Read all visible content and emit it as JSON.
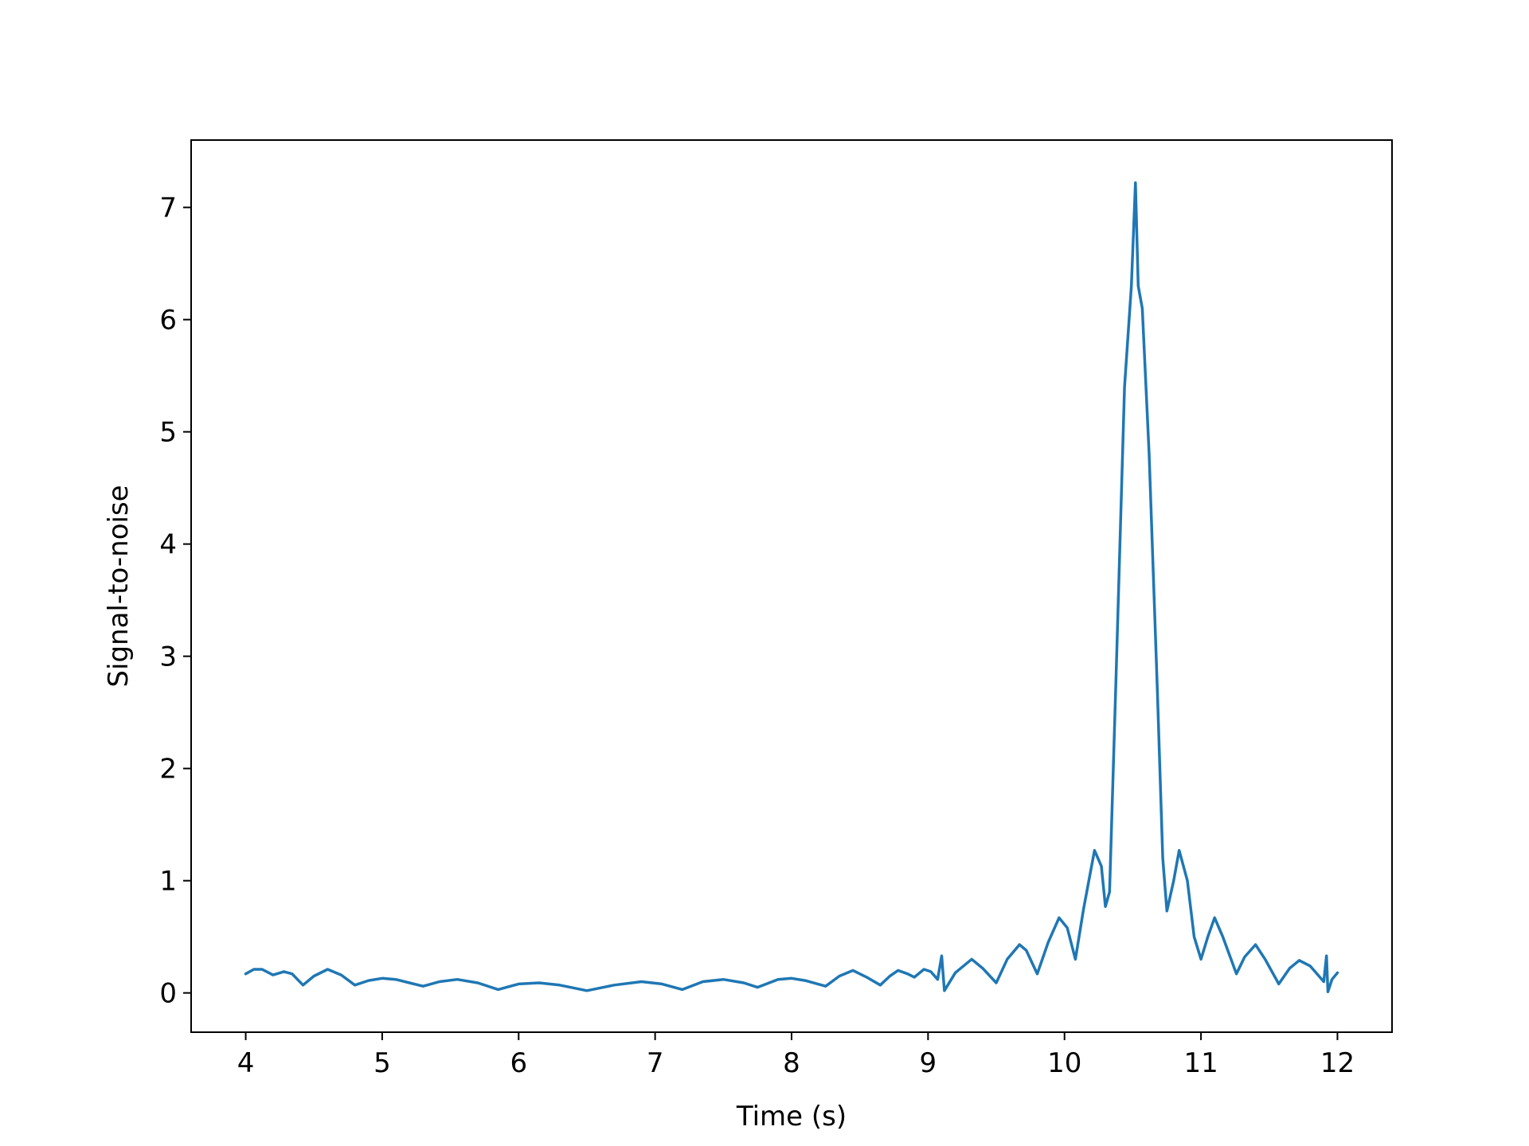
{
  "chart_data": {
    "type": "line",
    "title": "",
    "xlabel": "Time (s)",
    "ylabel": "Signal-to-noise",
    "xlim": [
      3.6,
      12.4
    ],
    "ylim": [
      -0.35,
      7.6
    ],
    "xticks": [
      4,
      5,
      6,
      7,
      8,
      9,
      10,
      11,
      12
    ],
    "yticks": [
      0,
      1,
      2,
      3,
      4,
      5,
      6,
      7
    ],
    "grid": false,
    "legend": "none",
    "series": [
      {
        "color": "#1f77b4",
        "points": [
          [
            4.0,
            0.17
          ],
          [
            4.06,
            0.21
          ],
          [
            4.12,
            0.21
          ],
          [
            4.2,
            0.16
          ],
          [
            4.28,
            0.19
          ],
          [
            4.34,
            0.17
          ],
          [
            4.42,
            0.07
          ],
          [
            4.5,
            0.15
          ],
          [
            4.6,
            0.21
          ],
          [
            4.7,
            0.16
          ],
          [
            4.8,
            0.07
          ],
          [
            4.9,
            0.11
          ],
          [
            5.0,
            0.13
          ],
          [
            5.1,
            0.12
          ],
          [
            5.2,
            0.09
          ],
          [
            5.3,
            0.06
          ],
          [
            5.42,
            0.1
          ],
          [
            5.55,
            0.12
          ],
          [
            5.7,
            0.09
          ],
          [
            5.85,
            0.03
          ],
          [
            6.0,
            0.08
          ],
          [
            6.15,
            0.09
          ],
          [
            6.3,
            0.07
          ],
          [
            6.5,
            0.02
          ],
          [
            6.7,
            0.07
          ],
          [
            6.9,
            0.1
          ],
          [
            7.05,
            0.08
          ],
          [
            7.2,
            0.03
          ],
          [
            7.35,
            0.1
          ],
          [
            7.5,
            0.12
          ],
          [
            7.65,
            0.09
          ],
          [
            7.75,
            0.05
          ],
          [
            7.9,
            0.12
          ],
          [
            8.0,
            0.13
          ],
          [
            8.1,
            0.11
          ],
          [
            8.25,
            0.06
          ],
          [
            8.35,
            0.15
          ],
          [
            8.45,
            0.2
          ],
          [
            8.55,
            0.14
          ],
          [
            8.65,
            0.07
          ],
          [
            8.72,
            0.15
          ],
          [
            8.78,
            0.2
          ],
          [
            8.85,
            0.17
          ],
          [
            8.9,
            0.14
          ],
          [
            8.97,
            0.21
          ],
          [
            9.02,
            0.19
          ],
          [
            9.07,
            0.12
          ],
          [
            9.1,
            0.33
          ],
          [
            9.12,
            0.02
          ],
          [
            9.2,
            0.18
          ],
          [
            9.32,
            0.3
          ],
          [
            9.4,
            0.22
          ],
          [
            9.5,
            0.09
          ],
          [
            9.58,
            0.3
          ],
          [
            9.67,
            0.43
          ],
          [
            9.72,
            0.38
          ],
          [
            9.8,
            0.17
          ],
          [
            9.88,
            0.45
          ],
          [
            9.96,
            0.67
          ],
          [
            10.02,
            0.58
          ],
          [
            10.08,
            0.3
          ],
          [
            10.14,
            0.75
          ],
          [
            10.22,
            1.27
          ],
          [
            10.27,
            1.13
          ],
          [
            10.3,
            0.77
          ],
          [
            10.33,
            0.9
          ],
          [
            10.38,
            2.9
          ],
          [
            10.44,
            5.4
          ],
          [
            10.49,
            6.3
          ],
          [
            10.52,
            7.22
          ],
          [
            10.54,
            6.3
          ],
          [
            10.57,
            6.1
          ],
          [
            10.62,
            4.8
          ],
          [
            10.68,
            2.7
          ],
          [
            10.72,
            1.2
          ],
          [
            10.75,
            0.73
          ],
          [
            10.8,
            1.0
          ],
          [
            10.84,
            1.27
          ],
          [
            10.9,
            1.0
          ],
          [
            10.95,
            0.5
          ],
          [
            11.0,
            0.3
          ],
          [
            11.05,
            0.5
          ],
          [
            11.1,
            0.67
          ],
          [
            11.16,
            0.5
          ],
          [
            11.26,
            0.17
          ],
          [
            11.32,
            0.32
          ],
          [
            11.4,
            0.43
          ],
          [
            11.47,
            0.3
          ],
          [
            11.57,
            0.08
          ],
          [
            11.65,
            0.22
          ],
          [
            11.72,
            0.29
          ],
          [
            11.8,
            0.24
          ],
          [
            11.9,
            0.1
          ],
          [
            11.92,
            0.33
          ],
          [
            11.93,
            0.01
          ],
          [
            11.96,
            0.12
          ],
          [
            12.0,
            0.18
          ]
        ]
      }
    ]
  }
}
